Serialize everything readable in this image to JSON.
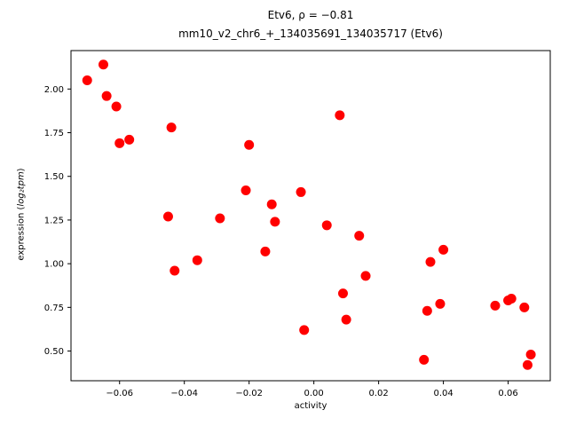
{
  "figure": {
    "title_line1": "Etv6, ρ = −0.81",
    "title_line2": "mm10_v2_chr6_+_134035691_134035717 (Etv6)",
    "xlabel": "activity",
    "ylabel_prefix": "expression (",
    "ylabel_math": "log₂tpm",
    "ylabel_suffix": ")"
  },
  "chart_data": {
    "type": "scatter",
    "title": "Etv6, ρ = −0.81",
    "subtitle": "mm10_v2_chr6_+_134035691_134035717 (Etv6)",
    "xlabel": "activity",
    "ylabel": "expression (log₂tpm)",
    "marker_color": "#ff0000",
    "spine_color": "#000000",
    "xlim": [
      -0.075,
      0.073
    ],
    "ylim": [
      0.33,
      2.22
    ],
    "x_ticks": {
      "values": [
        -0.06,
        -0.04,
        -0.02,
        0.0,
        0.02,
        0.04,
        0.06
      ],
      "labels": [
        "−0.06",
        "−0.04",
        "−0.02",
        "0.00",
        "0.02",
        "0.04",
        "0.06"
      ]
    },
    "y_ticks": {
      "values": [
        0.5,
        0.75,
        1.0,
        1.25,
        1.5,
        1.75,
        2.0
      ],
      "labels": [
        "0.50",
        "0.75",
        "1.00",
        "1.25",
        "1.50",
        "1.75",
        "2.00"
      ]
    },
    "legend": "none",
    "grid": false,
    "points": [
      [
        -0.07,
        2.05
      ],
      [
        -0.065,
        2.14
      ],
      [
        -0.064,
        1.96
      ],
      [
        -0.061,
        1.9
      ],
      [
        -0.06,
        1.69
      ],
      [
        -0.057,
        1.71
      ],
      [
        -0.044,
        1.78
      ],
      [
        -0.045,
        1.27
      ],
      [
        -0.043,
        0.96
      ],
      [
        -0.036,
        1.02
      ],
      [
        -0.029,
        1.26
      ],
      [
        -0.021,
        1.42
      ],
      [
        -0.02,
        1.68
      ],
      [
        -0.015,
        1.07
      ],
      [
        -0.013,
        1.34
      ],
      [
        -0.012,
        1.24
      ],
      [
        -0.004,
        1.41
      ],
      [
        -0.003,
        0.62
      ],
      [
        0.004,
        1.22
      ],
      [
        0.008,
        1.85
      ],
      [
        0.009,
        0.83
      ],
      [
        0.01,
        0.68
      ],
      [
        0.014,
        1.16
      ],
      [
        0.016,
        0.93
      ],
      [
        0.034,
        0.45
      ],
      [
        0.035,
        0.73
      ],
      [
        0.036,
        1.01
      ],
      [
        0.039,
        0.77
      ],
      [
        0.04,
        1.08
      ],
      [
        0.056,
        0.76
      ],
      [
        0.06,
        0.79
      ],
      [
        0.061,
        0.8
      ],
      [
        0.065,
        0.75
      ],
      [
        0.066,
        0.42
      ],
      [
        0.067,
        0.48
      ]
    ]
  }
}
